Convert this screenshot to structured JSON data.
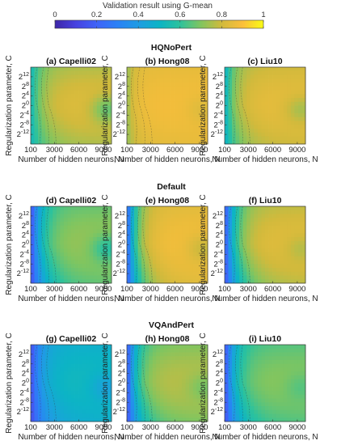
{
  "chart_data": {
    "type": "heatmap",
    "colorbar": {
      "label": "Validation result using G-mean",
      "ticks": [
        "0",
        "0.2",
        "0.4",
        "0.6",
        "0.8",
        "1"
      ],
      "range": [
        0,
        1
      ],
      "colormap": "parula"
    },
    "x_axis": {
      "label": "Number of hidden neurons, N",
      "ticks": [
        "100",
        "3000",
        "6000",
        "9000"
      ],
      "tick_values": [
        100,
        3000,
        6000,
        9000
      ],
      "range": [
        100,
        10000
      ]
    },
    "y_axis": {
      "label": "Regularization parameter, C",
      "ticks": [
        {
          "base": "2",
          "exp": "12"
        },
        {
          "base": "2",
          "exp": "8"
        },
        {
          "base": "2",
          "exp": "4"
        },
        {
          "base": "2",
          "exp": "0"
        },
        {
          "base": "2",
          "exp": "-4"
        },
        {
          "base": "2",
          "exp": "-8"
        },
        {
          "base": "2",
          "exp": "-12"
        }
      ],
      "tick_values": [
        12,
        8,
        4,
        0,
        -4,
        -8,
        -12
      ],
      "range": [
        -16,
        16
      ],
      "scale": "log2"
    },
    "rows": [
      {
        "group": "HQNoPert",
        "panels": [
          {
            "label": "(a) Capelli02",
            "low": 0.52,
            "plateau": 0.76,
            "rise": 1400,
            "curve": 0.07,
            "bulge": 0.16
          },
          {
            "label": "(b) Hong08",
            "low": 0.72,
            "plateau": 0.85,
            "rise": 900,
            "curve": 0.03,
            "bulge": 0.05
          },
          {
            "label": "(c) Liu10",
            "low": 0.48,
            "plateau": 0.8,
            "rise": 1300,
            "curve": 0.05,
            "bulge": 0.1
          }
        ]
      },
      {
        "group": "Default",
        "panels": [
          {
            "label": "(d) Capelli02",
            "low": 0.12,
            "plateau": 0.67,
            "rise": 1300,
            "curve": 0.06,
            "bulge": 0.14
          },
          {
            "label": "(e) Hong08",
            "low": 0.18,
            "plateau": 0.84,
            "rise": 1200,
            "curve": 0.04,
            "bulge": 0.09
          },
          {
            "label": "(f) Liu10",
            "low": 0.14,
            "plateau": 0.78,
            "rise": 1400,
            "curve": 0.06,
            "bulge": 0.07
          }
        ]
      },
      {
        "group": "VQAndPert",
        "panels": [
          {
            "label": "(g) Capelli02",
            "low": 0.12,
            "plateau": 0.48,
            "rise": 1200,
            "curve": 0.04,
            "bulge": 0.09
          },
          {
            "label": "(h) Hong08",
            "low": 0.14,
            "plateau": 0.7,
            "rise": 1200,
            "curve": 0.07,
            "bulge": 0.08
          },
          {
            "label": "(i) Liu10",
            "low": 0.13,
            "plateau": 0.65,
            "rise": 1300,
            "curve": 0.06,
            "bulge": 0.06
          }
        ]
      }
    ]
  }
}
